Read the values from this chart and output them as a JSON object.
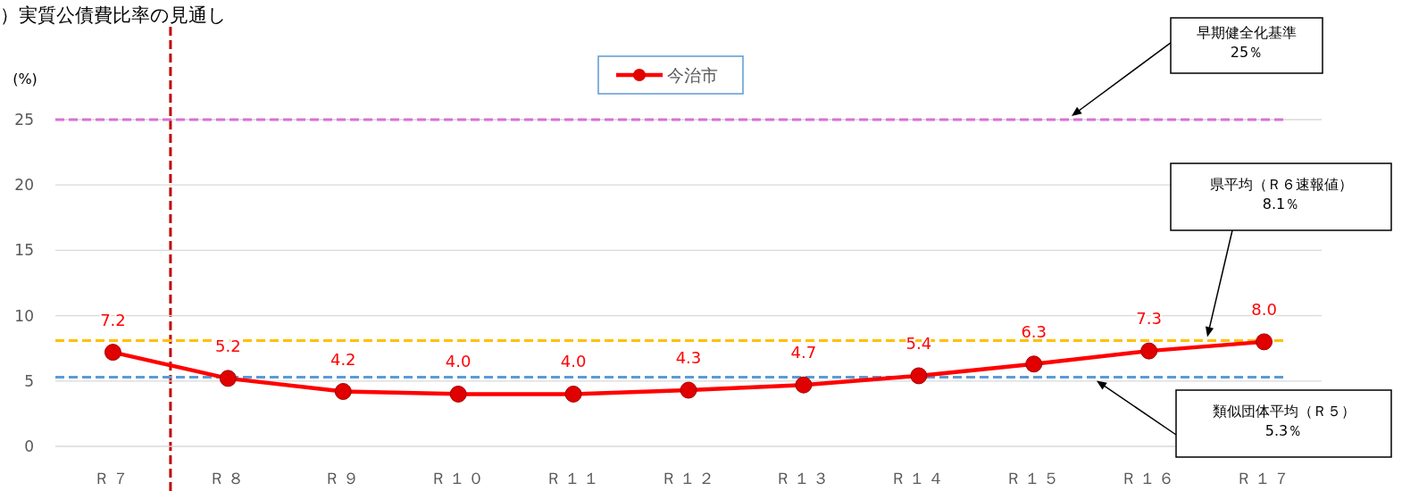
{
  "chart_data": {
    "type": "line",
    "title": "）実質公債費比率の見通し",
    "ylabel": "(%)",
    "categories": [
      "Ｒ７",
      "Ｒ８",
      "Ｒ９",
      "Ｒ１０",
      "Ｒ１１",
      "Ｒ１２",
      "Ｒ１３",
      "Ｒ１４",
      "Ｒ１５",
      "Ｒ１６",
      "Ｒ１７"
    ],
    "series": [
      {
        "name": "今治市",
        "color": "#ff0000",
        "values": [
          7.2,
          5.2,
          4.2,
          4.0,
          4.0,
          4.3,
          4.7,
          5.4,
          6.3,
          7.3,
          8.0
        ],
        "value_labels": [
          "7.2",
          "5.2",
          "4.2",
          "4.0",
          "4.0",
          "4.3",
          "4.7",
          "5.4",
          "6.3",
          "7.3",
          "8.0"
        ]
      }
    ],
    "ylim": [
      0,
      25
    ],
    "yticks": [
      0,
      5,
      10,
      15,
      20,
      25
    ],
    "grid": "y",
    "legend": "top",
    "marker": "circle",
    "line_style": "solid",
    "ref_lines": [
      {
        "axis": "y",
        "value": 25,
        "color": "#da70d6",
        "line_style": "dashed"
      },
      {
        "axis": "y",
        "value": 8.1,
        "color": "#ffc000",
        "line_style": "dashed"
      },
      {
        "axis": "y",
        "value": 5.3,
        "color": "#5b9bd5",
        "line_style": "dashed"
      }
    ],
    "annotations": [
      "早期健全化基準\n25％",
      "県平均（Ｒ６速報値）\n8.1％",
      "類似団体平均（Ｒ５）\n5.3％"
    ]
  }
}
